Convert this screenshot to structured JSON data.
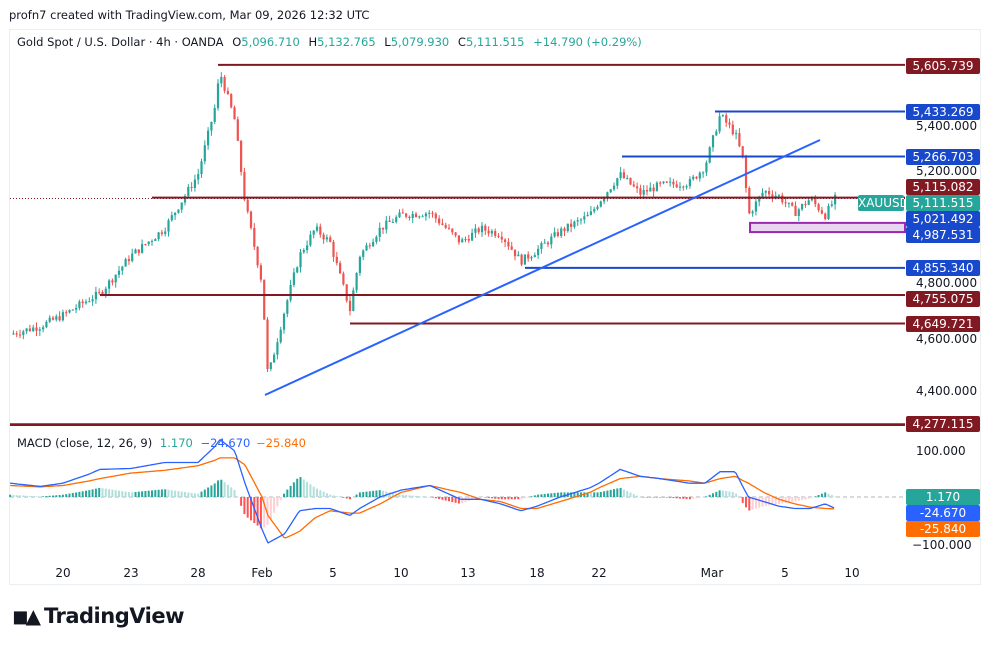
{
  "credit": "profn7 created with TradingView.com, Mar 09, 2026 12:32 UTC",
  "legend": {
    "symbol": "Gold Spot / U.S. Dollar · 4h · OANDA",
    "open_label": "O",
    "open": "5,096.710",
    "high_label": "H",
    "high": "5,132.765",
    "low_label": "L",
    "low": "5,079.930",
    "close_label": "C",
    "close": "5,111.515",
    "change": "+14.790 (+0.29%)"
  },
  "macd_legend": {
    "name": "MACD (close, 12, 26, 9)",
    "histogram": "1.170",
    "macd": "−24.670",
    "signal": "−25.840"
  },
  "price_axis": [
    "5,400.000",
    "5,200.000",
    "4,800.000",
    "4,600.000",
    "4,400.000"
  ],
  "macd_axis": [
    "100.000",
    "−100.000"
  ],
  "levels": [
    {
      "label": "5,605.739",
      "price": 5605.739,
      "color": "#801922"
    },
    {
      "label": "5,433.269",
      "price": 5433.269,
      "color": "#1848cc"
    },
    {
      "label": "5,266.703",
      "price": 5266.703,
      "color": "#1848cc"
    },
    {
      "label": "5,115.082",
      "price": 5115.082,
      "color": "#801922"
    },
    {
      "label": "5,021.492",
      "price": 5021.492,
      "color": "#1848cc"
    },
    {
      "label": "4,987.531",
      "price": 4987.531,
      "color": "#1848cc"
    },
    {
      "label": "4,855.340",
      "price": 4855.34,
      "color": "#1848cc"
    },
    {
      "label": "4,755.075",
      "price": 4755.075,
      "color": "#801922"
    },
    {
      "label": "4,649.721",
      "price": 4649.721,
      "color": "#801922"
    },
    {
      "label": "4,277.115",
      "price": 4277.115,
      "color": "#801922"
    }
  ],
  "current_price": {
    "symbol": "XAUUSD",
    "label": "5,111.515",
    "price": 5111.515,
    "color": "#26a69a"
  },
  "macd_values": {
    "histogram": "1.170",
    "macd": "-24.670",
    "signal": "-25.840",
    "histogram_color": "#26a69a",
    "macd_color": "#2962ff",
    "signal_color": "#ff6d00"
  },
  "x_axis": [
    "20",
    "23",
    "28",
    "Feb",
    "5",
    "10",
    "13",
    "18",
    "22",
    "Mar",
    "5",
    "10"
  ],
  "chart_data": {
    "type": "candlestick",
    "timeframe": "4h",
    "up_color": "#26a69a",
    "down_color": "#ef5350",
    "price_path": [
      [
        "2026-01-17T16:00",
        4610
      ],
      [
        "2026-01-19T00:00",
        4640
      ],
      [
        "2026-01-20T00:00",
        4680
      ],
      [
        "2026-01-21T04:00",
        4740
      ],
      [
        "2026-01-21T15:00",
        4760
      ],
      [
        "2026-01-23T00:00",
        4900
      ],
      [
        "2026-01-25T12:00",
        5000
      ],
      [
        "2026-01-28T00:00",
        5200
      ],
      [
        "2026-01-29T08:00",
        5450
      ],
      [
        "2026-01-29T17:00",
        5580
      ],
      [
        "2026-01-30T21:00",
        5400
      ],
      [
        "2026-01-31T16:00",
        5100
      ],
      [
        "2026-02-02T00:00",
        4800
      ],
      [
        "2026-02-02T06:00",
        4450
      ],
      [
        "2026-02-02T23:00",
        4700
      ],
      [
        "2026-02-03T14:00",
        4900
      ],
      [
        "2026-02-04T06:00",
        5000
      ],
      [
        "2026-02-04T21:00",
        4950
      ],
      [
        "2026-02-06T06:00",
        4700
      ],
      [
        "2026-02-06T23:00",
        4900
      ],
      [
        "2026-02-08T11:00",
        5000
      ],
      [
        "2026-02-10T00:00",
        5050
      ],
      [
        "2026-02-11T07:00",
        5060
      ],
      [
        "2026-02-12T16:00",
        4950
      ],
      [
        "2026-02-13T22:00",
        5000
      ],
      [
        "2026-02-15T09:00",
        4980
      ],
      [
        "2026-02-16T20:00",
        4880
      ],
      [
        "2026-02-18T00:00",
        4920
      ],
      [
        "2026-02-19T12:00",
        4990
      ],
      [
        "2026-02-21T10:00",
        5050
      ],
      [
        "2026-02-22T00:00",
        5100
      ],
      [
        "2026-02-23T12:00",
        5200
      ],
      [
        "2026-02-24T22:00",
        5130
      ],
      [
        "2026-02-26T07:00",
        5160
      ],
      [
        "2026-02-28T10:00",
        5170
      ],
      [
        "2026-03-01T12:00",
        5230
      ],
      [
        "2026-03-02T08:00",
        5420
      ],
      [
        "2026-03-02T23:00",
        5350
      ],
      [
        "2026-03-03T07:00",
        5250
      ],
      [
        "2026-03-03T12:00",
        5050
      ],
      [
        "2026-03-04T03:00",
        5140
      ],
      [
        "2026-03-04T18:00",
        5120
      ],
      [
        "2026-03-05T18:00",
        5060
      ],
      [
        "2026-03-06T21:00",
        5110
      ],
      [
        "2026-03-08T00:00",
        5050
      ],
      [
        "2026-03-08T18:00",
        5111.515
      ]
    ],
    "macd": [
      30,
      23,
      30,
      50,
      60,
      62,
      75,
      75,
      110,
      125,
      100,
      30,
      -70,
      -100,
      -80,
      -30,
      -25,
      -25,
      -40,
      -25,
      0,
      15,
      25,
      -5,
      -5,
      -15,
      -30,
      -20,
      0,
      20,
      30,
      60,
      45,
      40,
      30,
      30,
      55,
      55,
      20,
      0,
      -10,
      -20,
      -25,
      -25,
      -15,
      -24.67
    ],
    "signal": [
      25,
      22,
      25,
      35,
      40,
      52,
      58,
      68,
      80,
      85,
      85,
      70,
      0,
      -40,
      -90,
      -75,
      -45,
      -30,
      -35,
      -35,
      -15,
      10,
      25,
      10,
      -5,
      -10,
      -25,
      -25,
      -10,
      10,
      20,
      40,
      45,
      40,
      35,
      30,
      40,
      45,
      35,
      30,
      10,
      -5,
      -15,
      -22,
      -25,
      -25.84
    ],
    "price_ylim": [
      4250,
      5650
    ],
    "macd_ylim": [
      -120,
      140
    ]
  },
  "brand": "TradingView"
}
